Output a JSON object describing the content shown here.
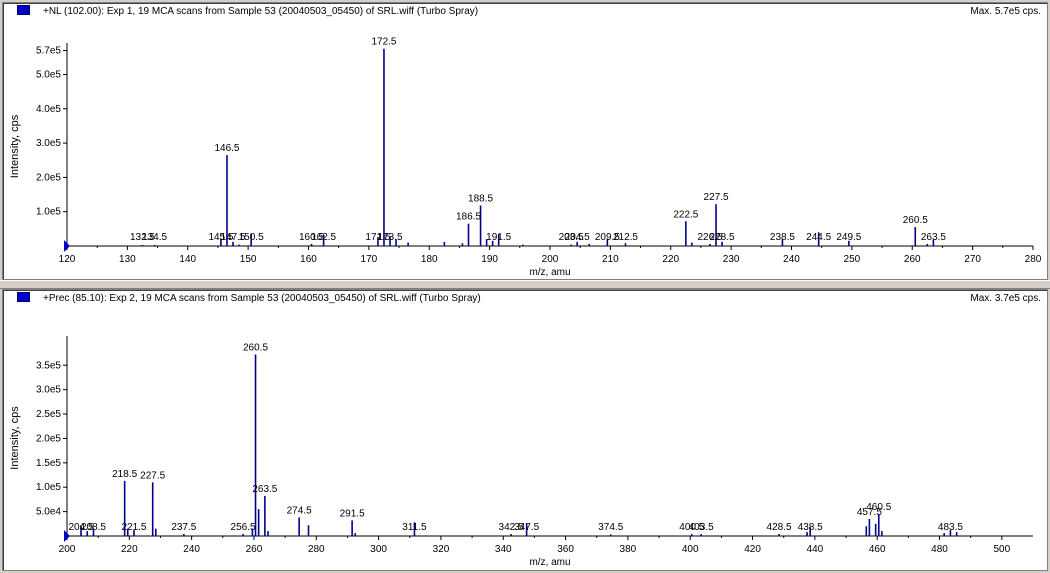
{
  "colors": {
    "peak": "#00008b",
    "axis": "#000000",
    "label": "#000000",
    "marker": "#0000cc"
  },
  "chart_data": [
    {
      "type": "bar",
      "title": "+NL (102.00): Exp 1, 19 MCA scans from Sample 53 (20040503_05450) of SRL.wiff (Turbo Spray)",
      "max_label": "Max. 5.7e5 cps.",
      "xlabel": "m/z, amu",
      "ylabel": "Intensity, cps",
      "xlim": [
        120,
        280
      ],
      "ylim": [
        0,
        575000
      ],
      "x_ticks": [
        120,
        130,
        140,
        150,
        160,
        170,
        180,
        190,
        200,
        210,
        220,
        230,
        240,
        250,
        260,
        270,
        280
      ],
      "y_ticks": [
        {
          "value": 100000,
          "label": "1.0e5"
        },
        {
          "value": 200000,
          "label": "2.0e5"
        },
        {
          "value": 300000,
          "label": "3.0e5"
        },
        {
          "value": 400000,
          "label": "4.0e5"
        },
        {
          "value": 500000,
          "label": "5.0e5"
        },
        {
          "value": 570000,
          "label": "5.7e5"
        }
      ],
      "peaks": [
        {
          "x": 132.5,
          "y": 3000,
          "label": "132.5"
        },
        {
          "x": 134.5,
          "y": 3000,
          "label": "134.5"
        },
        {
          "x": 145.5,
          "y": 22000,
          "label": "145.5"
        },
        {
          "x": 146.5,
          "y": 265000,
          "label": "146.5"
        },
        {
          "x": 147.5,
          "y": 12000,
          "label": "147.5"
        },
        {
          "x": 148.5,
          "y": 4000
        },
        {
          "x": 150.5,
          "y": 36000,
          "label": "150.5"
        },
        {
          "x": 160.5,
          "y": 6000,
          "label": "160.5"
        },
        {
          "x": 162.5,
          "y": 32000,
          "label": "162.5"
        },
        {
          "x": 171.5,
          "y": 26000,
          "label": "171.5"
        },
        {
          "x": 172.5,
          "y": 575000,
          "label": "172.5"
        },
        {
          "x": 173.5,
          "y": 28000,
          "label": "173.5"
        },
        {
          "x": 174.5,
          "y": 20000
        },
        {
          "x": 176.5,
          "y": 10000
        },
        {
          "x": 182.5,
          "y": 12000
        },
        {
          "x": 185.5,
          "y": 8000
        },
        {
          "x": 186.5,
          "y": 65000,
          "label": "186.5"
        },
        {
          "x": 188.5,
          "y": 118000,
          "label": "188.5"
        },
        {
          "x": 189.5,
          "y": 20000
        },
        {
          "x": 190.5,
          "y": 15000
        },
        {
          "x": 191.5,
          "y": 35000,
          "label": "191.5"
        },
        {
          "x": 195.5,
          "y": 4000
        },
        {
          "x": 203.5,
          "y": 4000,
          "label": "203.5"
        },
        {
          "x": 204.5,
          "y": 12000,
          "label": "204.5"
        },
        {
          "x": 206.5,
          "y": 6000
        },
        {
          "x": 209.5,
          "y": 22000,
          "label": "209.5"
        },
        {
          "x": 212.5,
          "y": 8000,
          "label": "212.5"
        },
        {
          "x": 222.5,
          "y": 72000,
          "label": "222.5"
        },
        {
          "x": 223.5,
          "y": 10000
        },
        {
          "x": 226.5,
          "y": 6000,
          "label": "226.5"
        },
        {
          "x": 227.5,
          "y": 122000,
          "label": "227.5"
        },
        {
          "x": 228.5,
          "y": 12000,
          "label": "228.5"
        },
        {
          "x": 238.5,
          "y": 20000,
          "label": "238.5"
        },
        {
          "x": 244.5,
          "y": 40000,
          "label": "244.5"
        },
        {
          "x": 249.5,
          "y": 15000,
          "label": "249.5"
        },
        {
          "x": 260.5,
          "y": 55000,
          "label": "260.5"
        },
        {
          "x": 262.5,
          "y": 6000
        },
        {
          "x": 263.5,
          "y": 18000,
          "label": "263.5"
        }
      ]
    },
    {
      "type": "bar",
      "title": "+Prec (85.10): Exp 2, 19 MCA scans from Sample 53 (20040503_05450) of SRL.wiff (Turbo Spray)",
      "max_label": "Max. 3.7e5 cps.",
      "xlabel": "m/z, amu",
      "ylabel": "Intensity, cps",
      "xlim": [
        200,
        510
      ],
      "ylim": [
        0,
        375000
      ],
      "x_ticks": [
        200,
        220,
        240,
        260,
        280,
        300,
        320,
        340,
        360,
        380,
        400,
        420,
        440,
        460,
        480,
        500
      ],
      "y_ticks": [
        {
          "value": 50000,
          "label": "5.0e4"
        },
        {
          "value": 100000,
          "label": "1.0e5"
        },
        {
          "value": 150000,
          "label": "1.5e5"
        },
        {
          "value": 200000,
          "label": "2.0e5"
        },
        {
          "value": 250000,
          "label": "2.5e5"
        },
        {
          "value": 300000,
          "label": "3.0e5"
        },
        {
          "value": 350000,
          "label": "3.5e5"
        }
      ],
      "peaks": [
        {
          "x": 204.5,
          "y": 22000,
          "label": "204.5"
        },
        {
          "x": 206.5,
          "y": 10000
        },
        {
          "x": 208.5,
          "y": 15000,
          "label": "208.5"
        },
        {
          "x": 218.5,
          "y": 113000,
          "label": "218.5"
        },
        {
          "x": 219.5,
          "y": 15000
        },
        {
          "x": 221.5,
          "y": 12000,
          "label": "221.5"
        },
        {
          "x": 227.5,
          "y": 110000,
          "label": "227.5"
        },
        {
          "x": 228.5,
          "y": 15000
        },
        {
          "x": 237.5,
          "y": 4000,
          "label": "237.5"
        },
        {
          "x": 256.5,
          "y": 4000,
          "label": "256.5"
        },
        {
          "x": 259.5,
          "y": 15000
        },
        {
          "x": 260.5,
          "y": 372000,
          "label": "260.5"
        },
        {
          "x": 261.5,
          "y": 55000
        },
        {
          "x": 263.5,
          "y": 82000,
          "label": "263.5"
        },
        {
          "x": 264.5,
          "y": 10000
        },
        {
          "x": 274.5,
          "y": 38000,
          "label": "274.5"
        },
        {
          "x": 277.5,
          "y": 22000
        },
        {
          "x": 291.5,
          "y": 32000,
          "label": "291.5"
        },
        {
          "x": 292.5,
          "y": 6000
        },
        {
          "x": 311.5,
          "y": 28000,
          "label": "311.5"
        },
        {
          "x": 342.5,
          "y": 4000,
          "label": "342.5"
        },
        {
          "x": 347.5,
          "y": 25000,
          "label": "347.5"
        },
        {
          "x": 374.5,
          "y": 3000,
          "label": "374.5"
        },
        {
          "x": 400.5,
          "y": 4000,
          "label": "400.5"
        },
        {
          "x": 403.5,
          "y": 4000,
          "label": "403.5"
        },
        {
          "x": 428.5,
          "y": 4000,
          "label": "428.5"
        },
        {
          "x": 437.5,
          "y": 8000
        },
        {
          "x": 438.5,
          "y": 18000,
          "label": "438.5"
        },
        {
          "x": 456.5,
          "y": 20000
        },
        {
          "x": 457.5,
          "y": 35000,
          "label": "457.5"
        },
        {
          "x": 459.5,
          "y": 25000
        },
        {
          "x": 460.5,
          "y": 45000,
          "label": "460.5"
        },
        {
          "x": 461.5,
          "y": 10000
        },
        {
          "x": 481.5,
          "y": 6000
        },
        {
          "x": 483.5,
          "y": 12000,
          "label": "483.5"
        },
        {
          "x": 485.5,
          "y": 8000
        }
      ]
    }
  ]
}
